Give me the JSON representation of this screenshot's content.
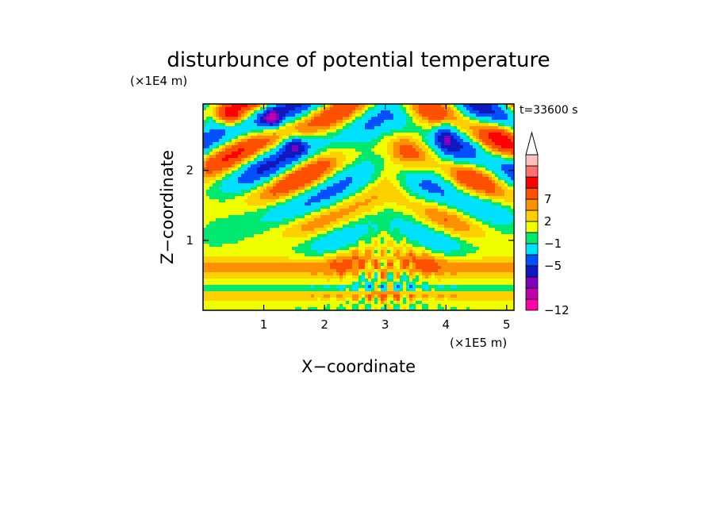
{
  "chart_data": {
    "type": "heatmap",
    "title": "disturbunce of potential temperature",
    "xlabel": "X−coordinate",
    "ylabel": "Z−coordinate",
    "x_unit": "(×1E5 m)",
    "y_unit": "(×1E4 m)",
    "time_label": "t=33600 s",
    "xlim": [
      0,
      5.12
    ],
    "ylim": [
      0,
      2.95
    ],
    "x_ticks": [
      1,
      2,
      3,
      4,
      5
    ],
    "y_ticks": [
      1,
      2
    ],
    "x_tick_labels": [
      "1",
      "2",
      "3",
      "4",
      "5"
    ],
    "y_tick_labels": [
      "1",
      "2"
    ],
    "colorbar": {
      "levels": [
        -12,
        -11,
        -9,
        -7,
        -5,
        -3,
        -1,
        0,
        1,
        2,
        3,
        5,
        7,
        9,
        11
      ],
      "tick_labels": [
        "7",
        "2",
        "−1",
        "−5",
        "−12"
      ],
      "colors": [
        "#ff00a8",
        "#c000b0",
        "#8000c0",
        "#1018c0",
        "#0050ff",
        "#00e0ff",
        "#00e870",
        "#f0ff00",
        "#ffd000",
        "#ff9000",
        "#ff5000",
        "#ff0000",
        "#ff7070",
        "#ffc0c0",
        "#ffffff"
      ]
    },
    "grid": false
  }
}
